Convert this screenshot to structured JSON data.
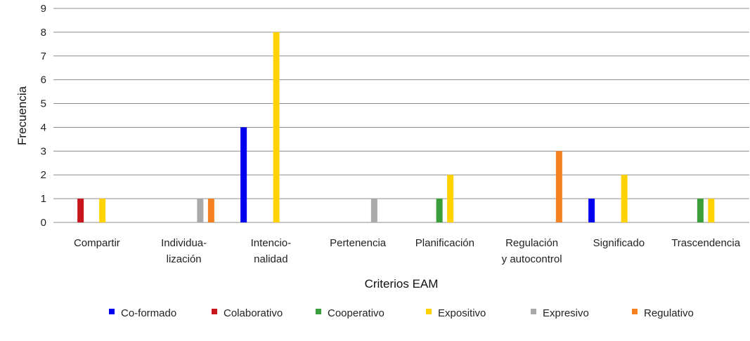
{
  "chart_data": {
    "type": "bar",
    "xlabel": "Criterios EAM",
    "ylabel": "Frecuencia",
    "ylim": [
      0,
      9
    ],
    "yticks": [
      0,
      1,
      2,
      3,
      4,
      5,
      6,
      7,
      8,
      9
    ],
    "grid": true,
    "legend_position": "bottom",
    "categories": [
      [
        "Compartir"
      ],
      [
        "Individua-",
        "lización"
      ],
      [
        "Intencio-",
        "nalidad"
      ],
      [
        "Pertenencia"
      ],
      [
        "Planificación"
      ],
      [
        "Regulación",
        "y autocontrol"
      ],
      [
        "Significado"
      ],
      [
        "Trascendencia"
      ]
    ],
    "series": [
      {
        "name": "Co-formado",
        "color": "#0000ee",
        "values": [
          0,
          0,
          4,
          0,
          0,
          0,
          1,
          0
        ]
      },
      {
        "name": "Colaborativo",
        "color": "#c8161d",
        "values": [
          1,
          0,
          0,
          0,
          0,
          0,
          0,
          0
        ]
      },
      {
        "name": "Cooperativo",
        "color": "#3a9e3a",
        "values": [
          0,
          0,
          0,
          0,
          1,
          0,
          0,
          1
        ]
      },
      {
        "name": "Expositivo",
        "color": "#ffd200",
        "values": [
          1,
          0,
          8,
          0,
          2,
          0,
          2,
          1
        ]
      },
      {
        "name": "Expresivo",
        "color": "#aaaaaa",
        "values": [
          0,
          1,
          0,
          1,
          0,
          0,
          0,
          0
        ]
      },
      {
        "name": "Regulativo",
        "color": "#f58220",
        "values": [
          0,
          1,
          0,
          0,
          0,
          3,
          0,
          0
        ]
      }
    ]
  }
}
